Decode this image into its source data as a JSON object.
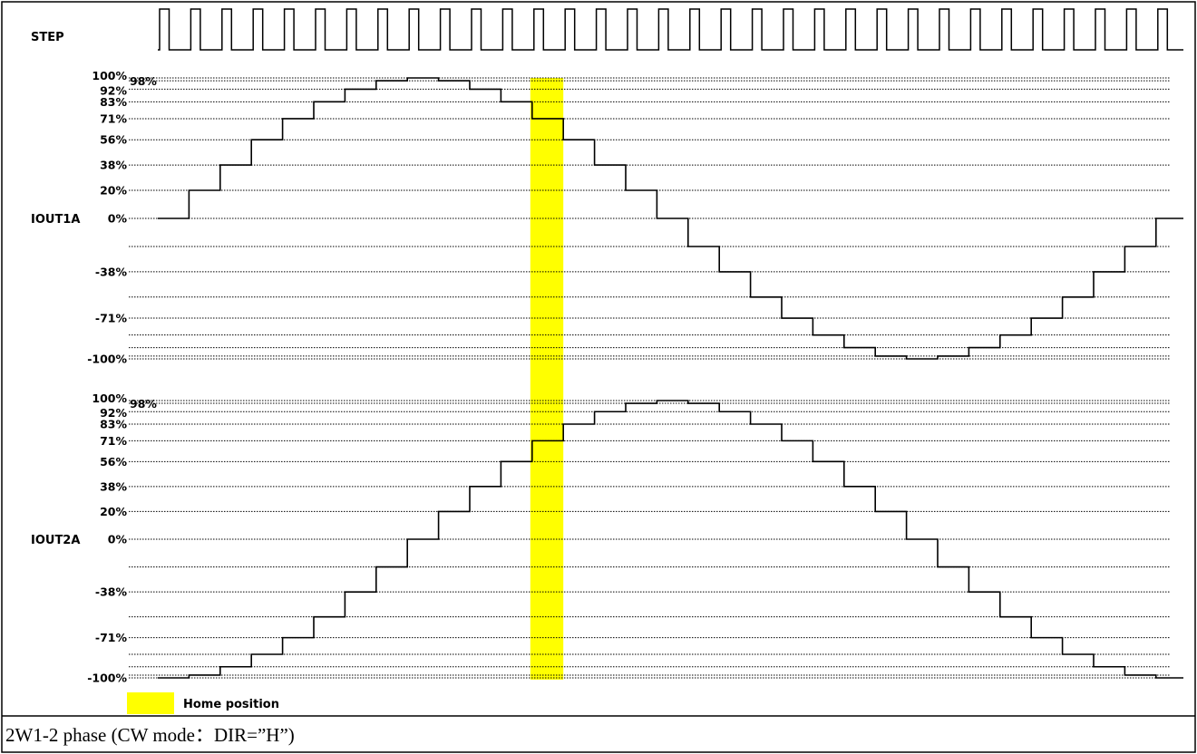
{
  "step_label": "STEP",
  "legend": {
    "label": "Home position",
    "color": "#ffff00"
  },
  "caption": "2W1-2 phase (CW mode：DIR=”H”)",
  "colors": {
    "trace": "#000000",
    "grid": "#000000",
    "home": "#ffff00"
  },
  "chart_data": [
    {
      "type": "line",
      "name": "IOUT1A",
      "interpolation": "step",
      "x": [
        0,
        1,
        2,
        3,
        4,
        5,
        6,
        7,
        8,
        9,
        10,
        11,
        12,
        13,
        14,
        15,
        16,
        17,
        18,
        19,
        20,
        21,
        22,
        23,
        24,
        25,
        26,
        27,
        28,
        29,
        30,
        31,
        32
      ],
      "values": [
        0,
        20,
        38,
        56,
        71,
        83,
        92,
        98,
        100,
        98,
        92,
        83,
        71,
        56,
        38,
        20,
        0,
        -20,
        -38,
        -56,
        -71,
        -83,
        -92,
        -98,
        -100,
        -98,
        -92,
        -83,
        -71,
        -56,
        -38,
        -20,
        0
      ],
      "grid_levels": [
        100,
        98,
        92,
        83,
        71,
        56,
        38,
        20,
        0,
        -20,
        -38,
        -56,
        -71,
        -83,
        -92,
        -98,
        -100
      ],
      "tick_labels": [
        {
          "level": 100,
          "text": "100%"
        },
        {
          "level": 98,
          "text": "98%"
        },
        {
          "level": 92,
          "text": "92%"
        },
        {
          "level": 83,
          "text": "83%"
        },
        {
          "level": 71,
          "text": "71%"
        },
        {
          "level": 56,
          "text": "56%"
        },
        {
          "level": 38,
          "text": "38%"
        },
        {
          "level": 20,
          "text": "20%"
        },
        {
          "level": 0,
          "text": "0%"
        },
        {
          "level": -38,
          "text": "-38%"
        },
        {
          "level": -71,
          "text": "-71%"
        },
        {
          "level": -100,
          "text": "-100%"
        }
      ],
      "ylim": [
        -100,
        100
      ]
    },
    {
      "type": "line",
      "name": "IOUT2A",
      "interpolation": "step",
      "x": [
        0,
        1,
        2,
        3,
        4,
        5,
        6,
        7,
        8,
        9,
        10,
        11,
        12,
        13,
        14,
        15,
        16,
        17,
        18,
        19,
        20,
        21,
        22,
        23,
        24,
        25,
        26,
        27,
        28,
        29,
        30,
        31,
        32
      ],
      "values": [
        -100,
        -98,
        -92,
        -83,
        -71,
        -56,
        -38,
        -20,
        0,
        20,
        38,
        56,
        71,
        83,
        92,
        98,
        100,
        98,
        92,
        83,
        71,
        56,
        38,
        20,
        0,
        -20,
        -38,
        -56,
        -71,
        -83,
        -92,
        -98,
        -100
      ],
      "grid_levels": [
        100,
        98,
        92,
        83,
        71,
        56,
        38,
        20,
        0,
        -20,
        -38,
        -56,
        -71,
        -83,
        -92,
        -98,
        -100
      ],
      "tick_labels": [
        {
          "level": 100,
          "text": "100%"
        },
        {
          "level": 98,
          "text": "98%"
        },
        {
          "level": 92,
          "text": "92%"
        },
        {
          "level": 83,
          "text": "83%"
        },
        {
          "level": 71,
          "text": "71%"
        },
        {
          "level": 56,
          "text": "56%"
        },
        {
          "level": 38,
          "text": "38%"
        },
        {
          "level": 20,
          "text": "20%"
        },
        {
          "level": 0,
          "text": "0%"
        },
        {
          "level": -38,
          "text": "-38%"
        },
        {
          "level": -71,
          "text": "-71%"
        },
        {
          "level": -100,
          "text": "-100%"
        }
      ],
      "ylim": [
        -100,
        100
      ]
    }
  ],
  "step_pulses": 33,
  "home_step": 12
}
